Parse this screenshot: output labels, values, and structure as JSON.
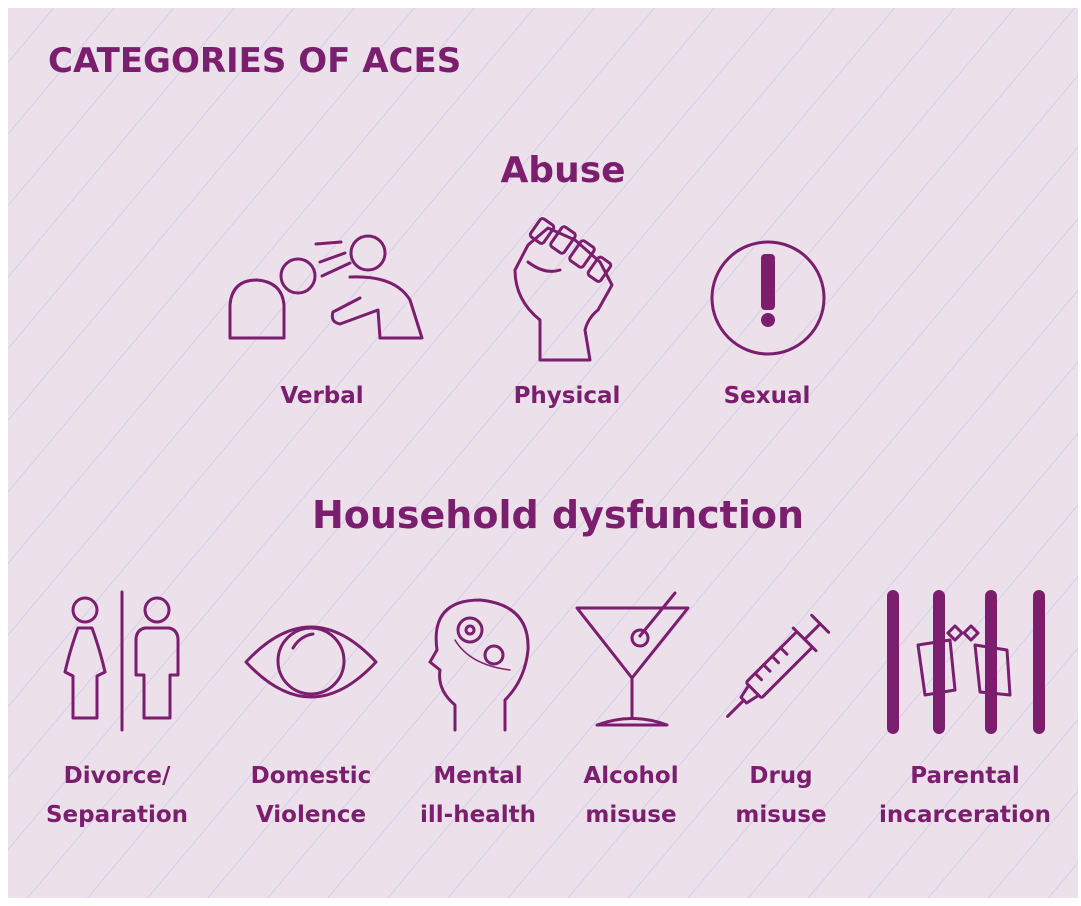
{
  "title": "CATEGORIES OF ACES",
  "sections": [
    {
      "heading": "Abuse",
      "items": [
        {
          "lines": [
            "Verbal"
          ]
        },
        {
          "lines": [
            "Physical"
          ]
        },
        {
          "lines": [
            "Sexual"
          ]
        }
      ]
    },
    {
      "heading": "Household dysfunction",
      "items": [
        {
          "lines": [
            "Divorce/",
            "Separation"
          ]
        },
        {
          "lines": [
            "Domestic",
            "Violence"
          ]
        },
        {
          "lines": [
            "Mental",
            "ill-health"
          ]
        },
        {
          "lines": [
            "Alcohol",
            "misuse"
          ]
        },
        {
          "lines": [
            "Drug",
            "misuse"
          ]
        },
        {
          "lines": [
            "Parental",
            "incarceration"
          ]
        }
      ]
    }
  ]
}
